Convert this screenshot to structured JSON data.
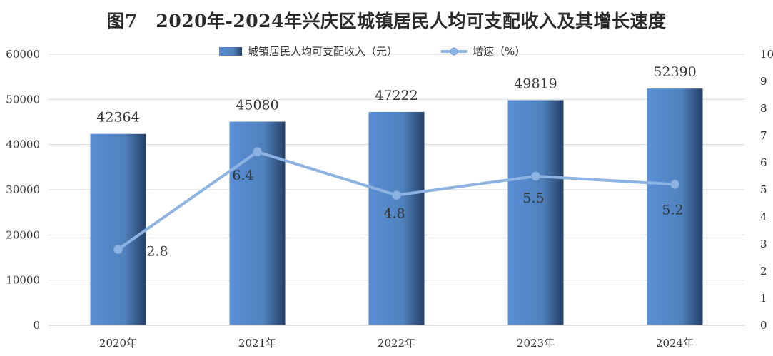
{
  "chart_data": {
    "type": "bar",
    "title": "图7　2020年-2024年兴庆区城镇居民人均可支配收入及其增长速度",
    "categories": [
      "2020年",
      "2021年",
      "2022年",
      "2023年",
      "2024年"
    ],
    "series": [
      {
        "name": "城镇居民人均可支配收入（元）",
        "type": "bar",
        "axis": "left",
        "values": [
          42364,
          45080,
          47222,
          49819,
          52390
        ],
        "color": "#4f81bd"
      },
      {
        "name": "增速（%）",
        "type": "line",
        "axis": "right",
        "values": [
          2.8,
          6.4,
          4.8,
          5.5,
          5.2
        ],
        "color": "#8db3e2"
      }
    ],
    "data_labels": {
      "bars": [
        "42364",
        "45080",
        "47222",
        "49819",
        "52390"
      ],
      "line": [
        "2.8",
        "6.4",
        "4.8",
        "5.5",
        "5.2"
      ]
    },
    "y_left": {
      "lim": [
        0,
        60000
      ],
      "ticks": [
        0,
        10000,
        20000,
        30000,
        40000,
        50000,
        60000
      ],
      "tick_labels": [
        "0",
        "10000",
        "20000",
        "30000",
        "40000",
        "50000",
        "60000"
      ]
    },
    "y_right": {
      "lim": [
        0,
        10
      ],
      "ticks": [
        0,
        1,
        2,
        3,
        4,
        5,
        6,
        7,
        8,
        9,
        10
      ],
      "tick_labels": [
        "0",
        "1",
        "2",
        "3",
        "4",
        "5",
        "6",
        "7",
        "8",
        "9",
        "10"
      ]
    },
    "grid": true,
    "legend_position": "top-center"
  }
}
